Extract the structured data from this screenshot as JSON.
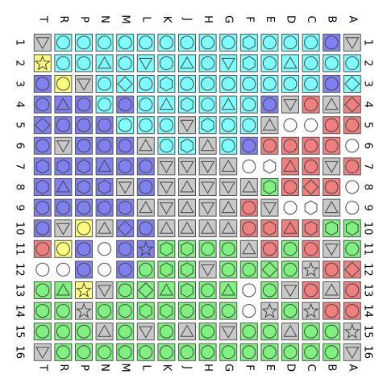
{
  "board": {
    "columns": [
      "T",
      "R",
      "P",
      "N",
      "M",
      "L",
      "K",
      "J",
      "H",
      "G",
      "F",
      "E",
      "D",
      "C",
      "B",
      "A"
    ],
    "rows": [
      "1",
      "2",
      "3",
      "4",
      "5",
      "6",
      "7",
      "8",
      "9",
      "10",
      "11",
      "12",
      "13",
      "14",
      "15",
      "16"
    ],
    "legend": {
      "colors": {
        "G": "#c8c8c8",
        "C": "#80ffff",
        "B": "#8080f0",
        "Y": "#ffff80",
        "R": "#f08080",
        "L": "#80f080",
        "W": "#ffffff"
      },
      "shapes": {
        "c": "circle",
        "t": "triangle",
        "v": "triangle-down",
        "h": "hexagon",
        "d": "diamond",
        "s": "star",
        "e": "empty"
      }
    },
    "grid": [
      [
        "Gv",
        "Cc",
        "Cc",
        "Cc",
        "Cc",
        "Cc",
        "Cc",
        "Cc",
        "Cc",
        "Cc",
        "Ch",
        "Cc",
        "Cc",
        "Cc",
        "Bc",
        "Gv"
      ],
      [
        "Ys",
        "Cc",
        "Cc",
        "Ct",
        "Cc",
        "Cv",
        "Cc",
        "Ct",
        "Cc",
        "Cv",
        "Ch",
        "Cc",
        "Ct",
        "Cc",
        "Cc",
        "Cc"
      ],
      [
        "Bc",
        "Yc",
        "Gv",
        "Cc",
        "Cd",
        "Cc",
        "Ch",
        "Cc",
        "Cc",
        "Cc",
        "Cc",
        "Cc",
        "Cc",
        "Cc",
        "Bc",
        "Cd"
      ],
      [
        "Bc",
        "Bt",
        "Bc",
        "Cc",
        "Bc",
        "Cc",
        "Ct",
        "Ch",
        "Cc",
        "Ct",
        "Cc",
        "Bc",
        "Gv",
        "Rc",
        "Gt",
        "Rd"
      ],
      [
        "Bd",
        "Bc",
        "Bc",
        "Bc",
        "Cc",
        "Cc",
        "Cc",
        "Gv",
        "Ch",
        "Cc",
        "Cc",
        "Gt",
        "Wc",
        "Wc",
        "Rc",
        "Rc"
      ],
      [
        "Bc",
        "Gv",
        "Bc",
        "Bc",
        "Bc",
        "Gt",
        "Cc",
        "Ch",
        "Gt",
        "Cc",
        "Bc",
        "Rc",
        "Rc",
        "Rc",
        "Rc",
        "Wc"
      ],
      [
        "Bh",
        "Bh",
        "Bh",
        "Bt",
        "Bc",
        "Bc",
        "Gv",
        "Gv",
        "Gv",
        "Gt",
        "Wc",
        "Wh",
        "Rt",
        "Rc",
        "Gv",
        "Rc"
      ],
      [
        "Bh",
        "Bt",
        "Bh",
        "Bh",
        "Gv",
        "Bc",
        "Gv",
        "Gt",
        "Gv",
        "Gv",
        "Gt",
        "Lh",
        "Rc",
        "Rd",
        "Rc",
        "Wc"
      ],
      [
        "Bc",
        "Bc",
        "Bc",
        "Bc",
        "Bc",
        "Gt",
        "Gv",
        "Gt",
        "Gv",
        "Gt",
        "Rc",
        "Gv",
        "Wc",
        "Wh",
        "Gt",
        "Wc"
      ],
      [
        "Bc",
        "Gv",
        "Yc",
        "Gt",
        "Bd",
        "Bc",
        "Gt",
        "Gt",
        "Gt",
        "Gt",
        "Rc",
        "Rh",
        "Rt",
        "Rh",
        "Lh",
        "Lh"
      ],
      [
        "Rc",
        "Yc",
        "Bc",
        "Wc",
        "Bc",
        "Bs",
        "Lh",
        "Lh",
        "Lc",
        "Lc",
        "Gt",
        "Rc",
        "Lc",
        "Rc",
        "Gv",
        "Lc"
      ],
      [
        "Wc",
        "Wc",
        "Bc",
        "Wc",
        "Bc",
        "Lc",
        "Lh",
        "Lh",
        "Gv",
        "Lc",
        "Lc",
        "Ld",
        "Lc",
        "Gs",
        "Rc",
        "Rd"
      ],
      [
        "Lc",
        "Lt",
        "Ys",
        "Gv",
        "Lc",
        "Ld",
        "Lt",
        "Lh",
        "Lc",
        "Lt",
        "Wc",
        "Lc",
        "Gv",
        "Rc",
        "Gt",
        "Rc"
      ],
      [
        "Lc",
        "Lc",
        "Gs",
        "Lc",
        "Lc",
        "Lh",
        "Lh",
        "Lc",
        "Lc",
        "Lc",
        "Wc",
        "Gs",
        "Lc",
        "Gs",
        "Rc",
        "Rc"
      ],
      [
        "Lc",
        "Lc",
        "Lc",
        "Gt",
        "Lc",
        "Gv",
        "Lc",
        "Gt",
        "Lc",
        "Gv",
        "Lc",
        "Lc",
        "Gt",
        "Lc",
        "Lc",
        "Gs"
      ],
      [
        "Gv",
        "Lc",
        "Lc",
        "Lc",
        "Lc",
        "Lc",
        "Lc",
        "Lc",
        "Lc",
        "Lc",
        "Lc",
        "Lc",
        "Lc",
        "Lc",
        "Lc",
        "Gv"
      ]
    ]
  }
}
